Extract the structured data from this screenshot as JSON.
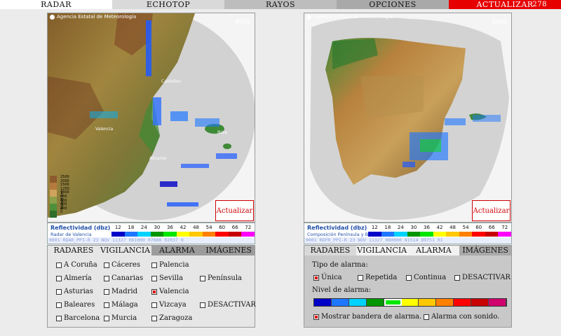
{
  "menu": {
    "items": [
      "RADAR",
      "ECHOTOP",
      "RAYOS",
      "OPCIONES",
      "ACTUALIZAR"
    ],
    "counter": "278"
  },
  "left_map": {
    "agency": "Agencia Estatal de Meteorología",
    "time": "0910",
    "update_label": "Actualizar",
    "cities": [
      "Castellon",
      "Valencia",
      "Alicante",
      "Ibiza"
    ],
    "altitude_label": "Altitud (m)",
    "altitude_ticks": [
      "2500",
      "2000",
      "1500",
      "1250",
      "1000",
      "800",
      "600",
      "400",
      "200",
      "0"
    ]
  },
  "right_map": {
    "agency": "Agencia Estatal de Meteorología",
    "time": "0900",
    "update_label": "Actualizar"
  },
  "left_legend": {
    "title": "Reflectividad (dbz)",
    "subtitle": "Radar de Valencia",
    "values": [
      "12",
      "18",
      "24",
      "30",
      "36",
      "42",
      "48",
      "54",
      "60",
      "66",
      "72"
    ],
    "footer": "0001 RDAR_PPI-R 23 NOV 11327 081000 07666 02037 0"
  },
  "right_legend": {
    "title": "Reflectividad (dbz)",
    "subtitle": "Composición Península y Baleares",
    "values": [
      "12",
      "18",
      "24",
      "30",
      "36",
      "42",
      "48",
      "54",
      "60",
      "66",
      "72"
    ],
    "footer": "0001 RDFR_PPI-R 23 NOV 11327 080000 81514 89751 01"
  },
  "scale_colors": [
    "#0000c8",
    "#1e78ff",
    "#00d2ff",
    "#009600",
    "#00e600",
    "#ffff00",
    "#ffc800",
    "#ff8000",
    "#ff0000",
    "#c80000",
    "#ff00ff"
  ],
  "left_box": {
    "tabs": [
      "RADARES",
      "VIGILANCIA",
      "ALARMA",
      "IMÁGENES"
    ],
    "radars": [
      [
        "A Coruña",
        "Cáceres",
        "Palencia",
        ""
      ],
      [
        "Almería",
        "Canarias",
        "Sevilla",
        "Península"
      ],
      [
        "Asturias",
        "Madrid",
        "Valencia",
        ""
      ],
      [
        "Baleares",
        "Málaga",
        "Vizcaya",
        "DESACTIVAR"
      ],
      [
        "Barcelona",
        "Murcia",
        "Zaragoza",
        ""
      ]
    ],
    "checked": "Valencia"
  },
  "right_box": {
    "tabs": [
      "RADARES",
      "VIGILANCIA",
      "ALARMA",
      "IMÁGENES"
    ],
    "alarm_type_label": "Tipo de alarma:",
    "alarm_types": [
      "Única",
      "Repetida",
      "Continua",
      "DESACTIVAR"
    ],
    "alarm_level_label": "Nivel de alarma:",
    "level_colors": [
      "#0000c8",
      "#1e78ff",
      "#00d2ff",
      "#009600",
      "#00e600",
      "#ffff00",
      "#ffc800",
      "#ff8000",
      "#ff0000",
      "#c80000",
      "#d0006f"
    ],
    "selected_level_index": 4,
    "show_flag_label": "Mostrar bandera de alarma.",
    "sound_label": "Alarma con sonido."
  }
}
